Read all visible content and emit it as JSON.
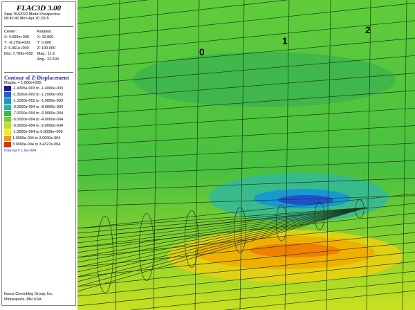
{
  "header": {
    "title": "FLAC3D 3.00",
    "step": "Step 1542022 Model Perspective",
    "date": "08:42:40 Mon Apr 20 2015"
  },
  "view": {
    "center": [
      "Center:",
      "X: 4.090e+000",
      "Y: -8.170e+000",
      "Z: 6.061e+000",
      "Dist: 7.789e+002"
    ],
    "rotation": [
      "Rotation:",
      "X: 10.000",
      "Y: 0.000",
      "Z: 130.000",
      "Mag.: 11.6",
      "Ang.: 22.500"
    ]
  },
  "legend": {
    "title": "Contour of Z-Displacement",
    "magfac": "Magfac = 1.000e+000",
    "entries": [
      {
        "label": "-1.4305e-003 to -1.4000e-003",
        "color": "#1a1aa0"
      },
      {
        "label": "-1.3000e-003 to -1.2000e-003",
        "color": "#2060d8"
      },
      {
        "label": "-1.1000e-003 to -1.0000e-003",
        "color": "#1898d0"
      },
      {
        "label": "-9.0000e-004 to -8.0000e-004",
        "color": "#20b8a0"
      },
      {
        "label": "-7.0000e-004 to -6.0000e-004",
        "color": "#30c040"
      },
      {
        "label": "-5.0000e-004 to -4.0000e-004",
        "color": "#78d020"
      },
      {
        "label": "-3.0000e-004 to -2.0000e-004",
        "color": "#b8e020"
      },
      {
        "label": "-1.0000e-004 to 0.0000e+000",
        "color": "#f0f000"
      },
      {
        "label": "1.0000e-004 to 2.0000e-004",
        "color": "#f0a000"
      },
      {
        "label": "3.0000e-004 to 3.4327e-004",
        "color": "#e03000"
      }
    ],
    "interval": "Interval = 1.0e-004"
  },
  "footer": {
    "company": "Itasca Consulting Group, Inc.",
    "location": "Minneapolis, MN USA"
  },
  "model": {
    "labels": [
      "0",
      "1",
      "2"
    ]
  }
}
